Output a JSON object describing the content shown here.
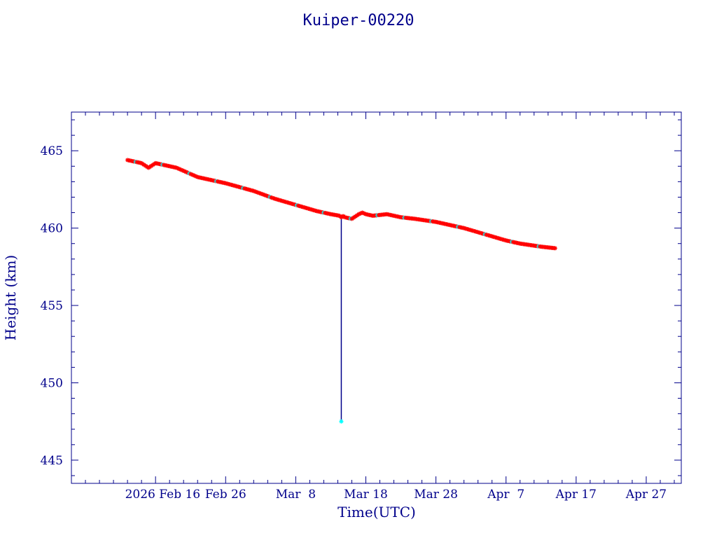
{
  "chart_data": {
    "type": "scatter",
    "title": "Kuiper-00220",
    "xlabel": "Time(UTC)",
    "ylabel": "Height (km)",
    "xlim": [
      "2026-02-04",
      "2026-05-02"
    ],
    "ylim": [
      443.5,
      467.5
    ],
    "x_ticks": [
      "2026 Feb 16",
      "Feb 26",
      "Mar  8",
      "Mar 18",
      "Mar 28",
      "Apr  7",
      "Apr 17",
      "Apr 27"
    ],
    "x_tick_dates": [
      "2026-02-16",
      "2026-02-26",
      "2026-03-08",
      "2026-03-18",
      "2026-03-28",
      "2026-04-07",
      "2026-04-17",
      "2026-04-27"
    ],
    "y_ticks": [
      445,
      450,
      455,
      460,
      465
    ],
    "grid": false,
    "colors": {
      "axes": "#00008b",
      "series": "#ff0000",
      "marker_alt": "#00ffff",
      "line": "#00008b"
    },
    "series": [
      {
        "x": [
          "2026-02-12",
          "2026-02-14",
          "2026-02-15",
          "2026-02-16",
          "2026-02-18",
          "2026-02-19",
          "2026-02-22",
          "2026-02-26",
          "2026-03-02",
          "2026-03-05",
          "2026-03-08",
          "2026-03-11",
          "2026-03-13",
          "2026-03-14 06:00",
          "2026-03-14 12:00",
          "2026-03-14 18:00",
          "2026-03-15",
          "2026-03-16",
          "2026-03-17",
          "2026-03-17 12:00",
          "2026-03-18",
          "2026-03-19",
          "2026-03-21",
          "2026-03-23",
          "2026-03-25",
          "2026-03-28",
          "2026-04-01",
          "2026-04-04",
          "2026-04-07",
          "2026-04-09",
          "2026-04-12",
          "2026-04-14"
        ],
        "values": [
          464.4,
          464.2,
          463.9,
          464.2,
          464.0,
          463.9,
          463.3,
          462.9,
          462.4,
          461.9,
          461.5,
          461.1,
          460.9,
          460.8,
          460.7,
          460.8,
          460.7,
          460.6,
          460.9,
          461.0,
          460.9,
          460.8,
          460.9,
          460.7,
          460.6,
          460.4,
          460.0,
          459.6,
          459.2,
          459.0,
          458.8,
          458.7
        ]
      }
    ],
    "outliers": [
      {
        "x": "2026-03-14 12:00",
        "value": 447.5
      }
    ]
  }
}
